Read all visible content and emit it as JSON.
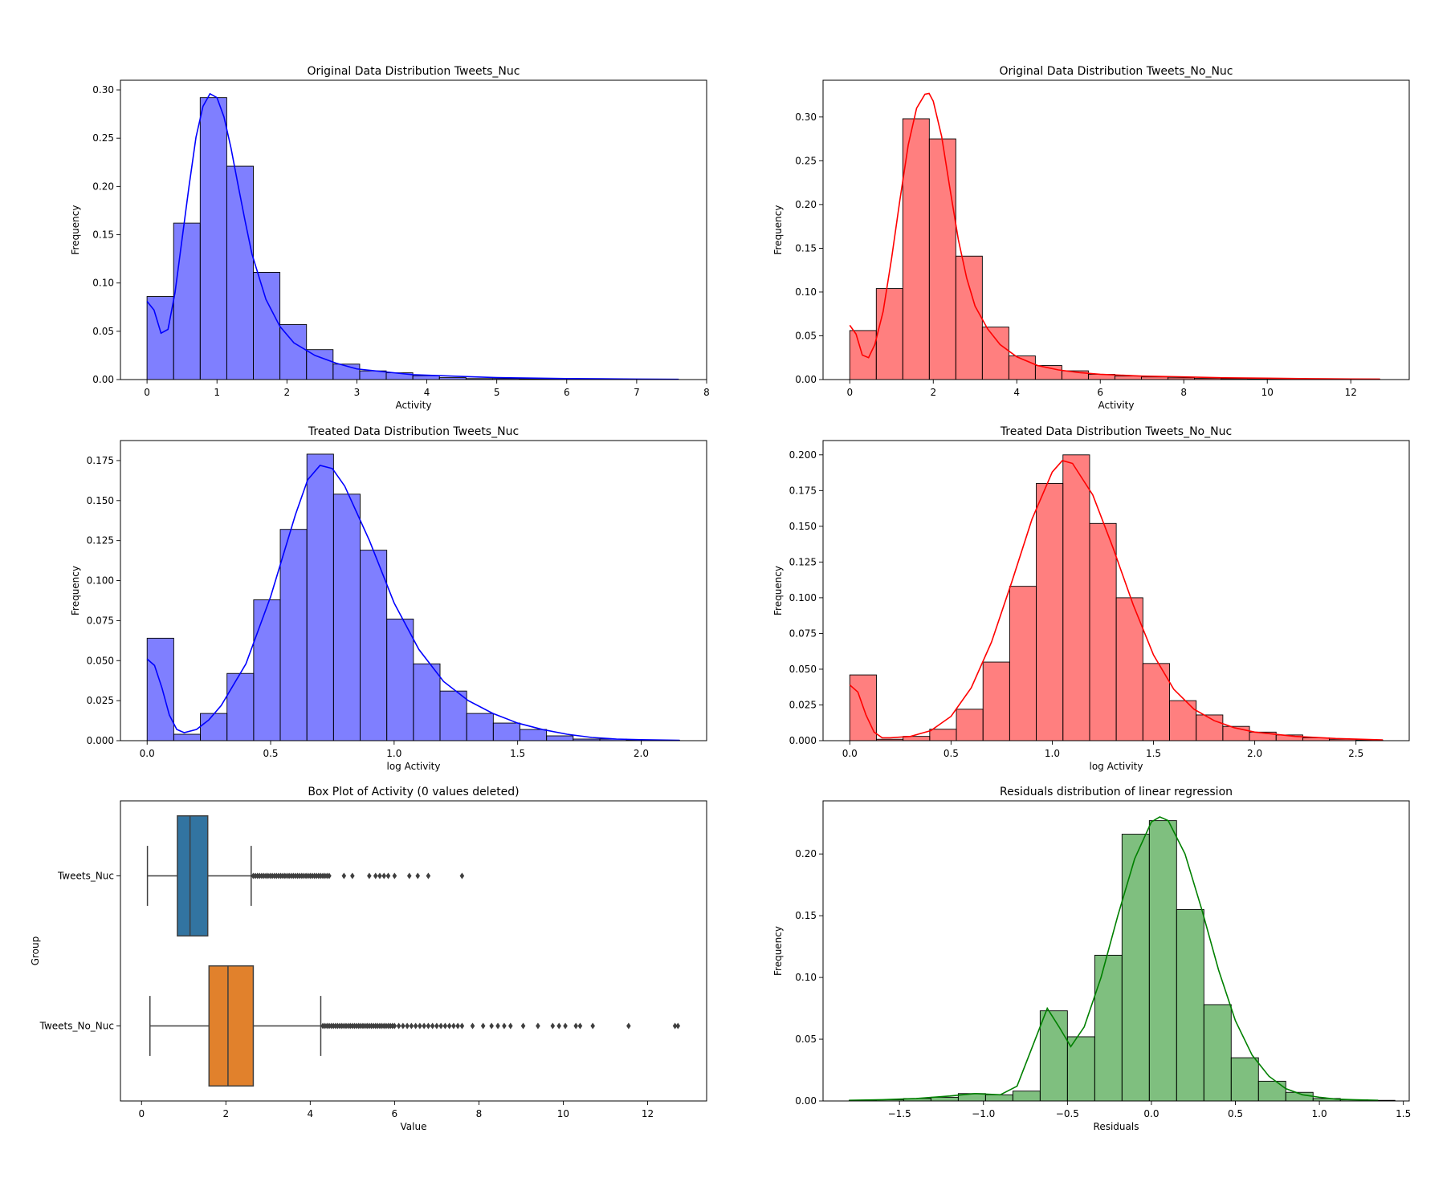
{
  "chart_data": [
    {
      "type": "bar",
      "title": "Original Data Distribution Tweets_Nuc",
      "xlabel": "Activity",
      "ylabel": "Frequency",
      "xlim": [
        -0.38,
        8
      ],
      "ylim": [
        0,
        0.31
      ],
      "xticks": [
        0,
        1,
        2,
        3,
        4,
        5,
        6,
        7,
        8
      ],
      "xticklabels": [
        "0",
        "1",
        "2",
        "3",
        "4",
        "5",
        "6",
        "7",
        "8"
      ],
      "yticks": [
        0,
        0.05,
        0.1,
        0.15,
        0.2,
        0.25,
        0.3
      ],
      "yticklabels": [
        "0.00",
        "0.05",
        "0.10",
        "0.15",
        "0.20",
        "0.25",
        "0.30"
      ],
      "bin_edges": [
        0,
        0.38,
        0.76,
        1.14,
        1.52,
        1.9,
        2.28,
        2.66,
        3.04,
        3.42,
        3.8,
        4.18,
        4.56,
        4.94,
        5.32,
        5.7,
        6.08,
        6.46,
        6.84,
        7.22,
        7.6
      ],
      "values": [
        0.086,
        0.162,
        0.292,
        0.221,
        0.111,
        0.057,
        0.031,
        0.016,
        0.009,
        0.007,
        0.004,
        0.002,
        0.001,
        0.001,
        0.0008,
        0.0005,
        0.0004,
        0.0003,
        0.0002,
        0.0002
      ],
      "kde": {
        "x": [
          0,
          0.1,
          0.2,
          0.3,
          0.4,
          0.5,
          0.6,
          0.7,
          0.8,
          0.9,
          1.0,
          1.1,
          1.2,
          1.3,
          1.4,
          1.5,
          1.7,
          1.9,
          2.1,
          2.4,
          2.7,
          3.0,
          3.4,
          3.8,
          4.2,
          4.6,
          5.0,
          5.5,
          6.0,
          6.5,
          7.0,
          7.6
        ],
        "y": [
          0.081,
          0.072,
          0.048,
          0.052,
          0.09,
          0.145,
          0.2,
          0.251,
          0.283,
          0.296,
          0.292,
          0.272,
          0.24,
          0.202,
          0.165,
          0.13,
          0.083,
          0.055,
          0.038,
          0.025,
          0.017,
          0.011,
          0.008,
          0.005,
          0.004,
          0.003,
          0.002,
          0.0015,
          0.001,
          0.0008,
          0.0005,
          0.0003
        ]
      },
      "color": "#0000ff"
    },
    {
      "type": "bar",
      "title": "Original Data Distribution Tweets_No_Nuc",
      "xlabel": "Activity",
      "ylabel": "Frequency",
      "xlim": [
        -0.64,
        13.4
      ],
      "ylim": [
        0,
        0.342
      ],
      "xticks": [
        0,
        2,
        4,
        6,
        8,
        10,
        12
      ],
      "xticklabels": [
        "0",
        "2",
        "4",
        "6",
        "8",
        "10",
        "12"
      ],
      "yticks": [
        0,
        0.05,
        0.1,
        0.15,
        0.2,
        0.25,
        0.3
      ],
      "yticklabels": [
        "0.00",
        "0.05",
        "0.10",
        "0.15",
        "0.20",
        "0.25",
        "0.30"
      ],
      "bin_edges": [
        0,
        0.635,
        1.27,
        1.905,
        2.54,
        3.175,
        3.81,
        4.445,
        5.08,
        5.715,
        6.35,
        6.985,
        7.62,
        8.255,
        8.89,
        9.525,
        10.16,
        10.795,
        11.43,
        12.065,
        12.7
      ],
      "values": [
        0.056,
        0.104,
        0.298,
        0.275,
        0.141,
        0.06,
        0.027,
        0.016,
        0.01,
        0.006,
        0.004,
        0.003,
        0.002,
        0.0015,
        0.001,
        0.0008,
        0.0006,
        0.0005,
        0.0004,
        0.0003
      ],
      "kde": {
        "x": [
          0,
          0.15,
          0.3,
          0.45,
          0.6,
          0.8,
          1.0,
          1.2,
          1.4,
          1.6,
          1.8,
          1.9,
          2.0,
          2.2,
          2.4,
          2.6,
          2.8,
          3.0,
          3.3,
          3.6,
          4.0,
          4.5,
          5.0,
          5.5,
          6.0,
          7.0,
          8.0,
          9.0,
          10.0,
          11.0,
          12.0,
          12.7
        ],
        "y": [
          0.062,
          0.052,
          0.028,
          0.025,
          0.04,
          0.078,
          0.138,
          0.205,
          0.268,
          0.31,
          0.326,
          0.327,
          0.318,
          0.278,
          0.218,
          0.16,
          0.116,
          0.084,
          0.058,
          0.04,
          0.026,
          0.016,
          0.011,
          0.008,
          0.006,
          0.004,
          0.003,
          0.002,
          0.0015,
          0.001,
          0.0007,
          0.0005
        ]
      },
      "color": "#ff0000"
    },
    {
      "type": "bar",
      "title": "Treated Data Distribution Tweets_Nuc",
      "xlabel": "log Activity",
      "ylabel": "Frequency",
      "xlim": [
        -0.108,
        2.265
      ],
      "ylim": [
        0,
        0.1875
      ],
      "xticks": [
        0,
        0.5,
        1.0,
        1.5,
        2.0
      ],
      "xticklabels": [
        "0.0",
        "0.5",
        "1.0",
        "1.5",
        "2.0"
      ],
      "yticks": [
        0,
        0.025,
        0.05,
        0.075,
        0.1,
        0.125,
        0.15,
        0.175
      ],
      "yticklabels": [
        "0.000",
        "0.025",
        "0.050",
        "0.075",
        "0.100",
        "0.125",
        "0.150",
        "0.175"
      ],
      "bin_edges": [
        0,
        0.1078,
        0.2156,
        0.3234,
        0.4312,
        0.539,
        0.6468,
        0.7546,
        0.8624,
        0.9702,
        1.078,
        1.1858,
        1.2936,
        1.4014,
        1.5092,
        1.617,
        1.7248,
        1.8326,
        1.9404,
        2.0482,
        2.156
      ],
      "values": [
        0.064,
        0.004,
        0.017,
        0.042,
        0.088,
        0.132,
        0.179,
        0.154,
        0.119,
        0.076,
        0.048,
        0.031,
        0.017,
        0.011,
        0.007,
        0.003,
        0.001,
        0.001,
        0.0005,
        0.0002
      ],
      "kde": {
        "x": [
          0,
          0.03,
          0.06,
          0.09,
          0.12,
          0.15,
          0.2,
          0.25,
          0.3,
          0.4,
          0.5,
          0.6,
          0.65,
          0.7,
          0.75,
          0.8,
          0.9,
          1.0,
          1.1,
          1.2,
          1.3,
          1.4,
          1.5,
          1.6,
          1.7,
          1.8,
          1.9,
          2.0,
          2.156
        ],
        "y": [
          0.051,
          0.047,
          0.033,
          0.016,
          0.007,
          0.005,
          0.007,
          0.013,
          0.022,
          0.048,
          0.09,
          0.141,
          0.163,
          0.172,
          0.17,
          0.159,
          0.125,
          0.086,
          0.057,
          0.037,
          0.025,
          0.017,
          0.011,
          0.007,
          0.004,
          0.002,
          0.001,
          0.0006,
          0.0002
        ]
      },
      "color": "#0000ff"
    },
    {
      "type": "bar",
      "title": "Treated Data Distribution Tweets_No_Nuc",
      "xlabel": "log Activity",
      "ylabel": "Frequency",
      "xlim": [
        -0.132,
        2.763
      ],
      "ylim": [
        0,
        0.21
      ],
      "xticks": [
        0,
        0.5,
        1.0,
        1.5,
        2.0,
        2.5
      ],
      "xticklabels": [
        "0.0",
        "0.5",
        "1.0",
        "1.5",
        "2.0",
        "2.5"
      ],
      "yticks": [
        0,
        0.025,
        0.05,
        0.075,
        0.1,
        0.125,
        0.15,
        0.175,
        0.2
      ],
      "yticklabels": [
        "0.000",
        "0.025",
        "0.050",
        "0.075",
        "0.100",
        "0.125",
        "0.150",
        "0.175",
        "0.200"
      ],
      "bin_edges": [
        0,
        0.1316,
        0.2632,
        0.3948,
        0.5264,
        0.658,
        0.7896,
        0.9212,
        1.0528,
        1.1844,
        1.316,
        1.4476,
        1.5792,
        1.7108,
        1.8424,
        1.974,
        2.1056,
        2.2372,
        2.3688,
        2.5004,
        2.632
      ],
      "values": [
        0.046,
        0.001,
        0.003,
        0.008,
        0.022,
        0.055,
        0.108,
        0.18,
        0.2,
        0.152,
        0.1,
        0.054,
        0.028,
        0.018,
        0.01,
        0.006,
        0.004,
        0.002,
        0.001,
        0.0005
      ],
      "kde": {
        "x": [
          0,
          0.04,
          0.08,
          0.12,
          0.16,
          0.2,
          0.3,
          0.4,
          0.5,
          0.6,
          0.7,
          0.8,
          0.9,
          1.0,
          1.05,
          1.1,
          1.2,
          1.3,
          1.4,
          1.5,
          1.6,
          1.7,
          1.8,
          1.9,
          2.0,
          2.2,
          2.4,
          2.632
        ],
        "y": [
          0.039,
          0.034,
          0.018,
          0.006,
          0.002,
          0.002,
          0.003,
          0.007,
          0.017,
          0.037,
          0.069,
          0.111,
          0.155,
          0.188,
          0.196,
          0.194,
          0.172,
          0.135,
          0.095,
          0.06,
          0.036,
          0.022,
          0.014,
          0.009,
          0.006,
          0.003,
          0.0015,
          0.0005
        ]
      },
      "color": "#ff0000"
    },
    {
      "type": "box",
      "title": "Box Plot of Activity (0 values deleted)",
      "xlabel": "Value",
      "ylabel": "Group",
      "xlim": [
        -0.5,
        13.4
      ],
      "xticks": [
        0,
        2,
        4,
        6,
        8,
        10,
        12
      ],
      "xticklabels": [
        "0",
        "2",
        "4",
        "6",
        "8",
        "10",
        "12"
      ],
      "categories": [
        "Tweets_Nuc",
        "Tweets_No_Nuc"
      ],
      "boxes": [
        {
          "name": "Tweets_Nuc",
          "whisker_low": 0.14,
          "q1": 0.85,
          "median": 1.15,
          "q3": 1.57,
          "whisker_high": 2.6,
          "outliers": [
            2.65,
            2.7,
            2.75,
            2.8,
            2.85,
            2.9,
            2.95,
            3.0,
            3.05,
            3.1,
            3.15,
            3.2,
            3.25,
            3.3,
            3.35,
            3.4,
            3.45,
            3.5,
            3.55,
            3.6,
            3.65,
            3.7,
            3.75,
            3.8,
            3.85,
            3.9,
            3.95,
            4.0,
            4.05,
            4.1,
            4.15,
            4.2,
            4.25,
            4.3,
            4.35,
            4.4,
            4.45,
            4.8,
            5.0,
            5.4,
            5.55,
            5.65,
            5.75,
            5.85,
            6.0,
            6.35,
            6.55,
            6.8,
            7.6
          ],
          "color": "#3274a1"
        },
        {
          "name": "Tweets_No_Nuc",
          "whisker_low": 0.2,
          "q1": 1.6,
          "median": 2.05,
          "q3": 2.65,
          "whisker_high": 4.25,
          "outliers": [
            4.3,
            4.35,
            4.4,
            4.45,
            4.5,
            4.55,
            4.6,
            4.65,
            4.7,
            4.75,
            4.8,
            4.85,
            4.9,
            4.95,
            5.0,
            5.05,
            5.1,
            5.15,
            5.2,
            5.25,
            5.3,
            5.35,
            5.4,
            5.45,
            5.5,
            5.55,
            5.6,
            5.65,
            5.7,
            5.75,
            5.8,
            5.85,
            5.9,
            5.95,
            6.0,
            6.1,
            6.2,
            6.3,
            6.4,
            6.5,
            6.6,
            6.7,
            6.8,
            6.9,
            7.0,
            7.1,
            7.2,
            7.3,
            7.4,
            7.5,
            7.6,
            7.85,
            8.1,
            8.3,
            8.45,
            8.6,
            8.75,
            9.05,
            9.4,
            9.75,
            9.9,
            10.05,
            10.3,
            10.4,
            10.7,
            11.55,
            12.65,
            12.72
          ],
          "color": "#e1812c"
        }
      ]
    },
    {
      "type": "bar",
      "title": "Residuals distribution of linear regression",
      "xlabel": "Residuals",
      "ylabel": "Frequency",
      "xlim": [
        -1.955,
        1.535
      ],
      "ylim": [
        0,
        0.243
      ],
      "xticks": [
        -1.5,
        -1.0,
        -0.5,
        0.0,
        0.5,
        1.0,
        1.5
      ],
      "xticklabels": [
        "−1.5",
        "−1.0",
        "−0.5",
        "0.0",
        "0.5",
        "1.0",
        "1.5"
      ],
      "yticks": [
        0,
        0.05,
        0.1,
        0.15,
        0.2
      ],
      "yticklabels": [
        "0.00",
        "0.05",
        "0.10",
        "0.15",
        "0.20"
      ],
      "bin_edges": [
        -1.8,
        -1.6375,
        -1.475,
        -1.3125,
        -1.15,
        -0.9875,
        -0.825,
        -0.6625,
        -0.5,
        -0.3375,
        -0.175,
        -0.0125,
        0.15,
        0.3125,
        0.475,
        0.6375,
        0.8,
        0.9625,
        1.125,
        1.2875,
        1.45
      ],
      "values": [
        0.0005,
        0.001,
        0.002,
        0.003,
        0.006,
        0.005,
        0.008,
        0.073,
        0.052,
        0.118,
        0.216,
        0.227,
        0.155,
        0.078,
        0.035,
        0.016,
        0.007,
        0.002,
        0.001,
        0.0005
      ],
      "kde": {
        "x": [
          -1.8,
          -1.6,
          -1.4,
          -1.2,
          -1.05,
          -0.9,
          -0.8,
          -0.7,
          -0.62,
          -0.55,
          -0.48,
          -0.4,
          -0.3,
          -0.2,
          -0.1,
          0.0,
          0.05,
          0.1,
          0.2,
          0.3,
          0.4,
          0.5,
          0.6,
          0.7,
          0.8,
          0.9,
          1.0,
          1.1,
          1.2,
          1.35
        ],
        "y": [
          0.0005,
          0.001,
          0.002,
          0.004,
          0.006,
          0.005,
          0.012,
          0.047,
          0.075,
          0.06,
          0.044,
          0.06,
          0.1,
          0.15,
          0.196,
          0.226,
          0.23,
          0.227,
          0.2,
          0.155,
          0.106,
          0.065,
          0.037,
          0.02,
          0.01,
          0.005,
          0.003,
          0.0015,
          0.001,
          0.0005
        ]
      },
      "color": "#008000"
    }
  ]
}
